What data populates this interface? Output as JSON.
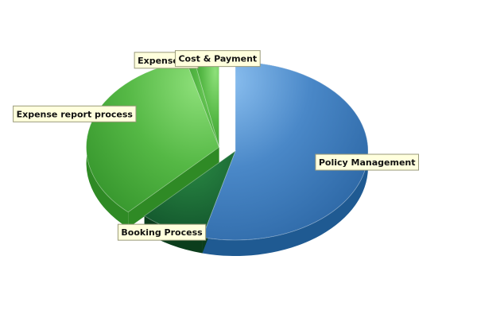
{
  "chart_data": {
    "type": "pie",
    "title": "",
    "categories": [
      "Policy Management",
      "Booking Process",
      "Expense report process",
      "Expense Approval",
      "Cost & Payment"
    ],
    "labels": [
      "Policy Management",
      "Booking Process",
      "Expense report process",
      "Expense Ap",
      "Cost & Payment"
    ],
    "values": [
      54,
      8,
      34,
      1,
      3
    ],
    "colors": [
      "#3f7fc0",
      "#1a6e2e",
      "#52b844",
      "#5cc24d",
      "#66c857"
    ],
    "exploded": [
      "Expense report process",
      "Expense Approval",
      "Cost & Payment"
    ],
    "legend": "none",
    "three_d": true
  }
}
